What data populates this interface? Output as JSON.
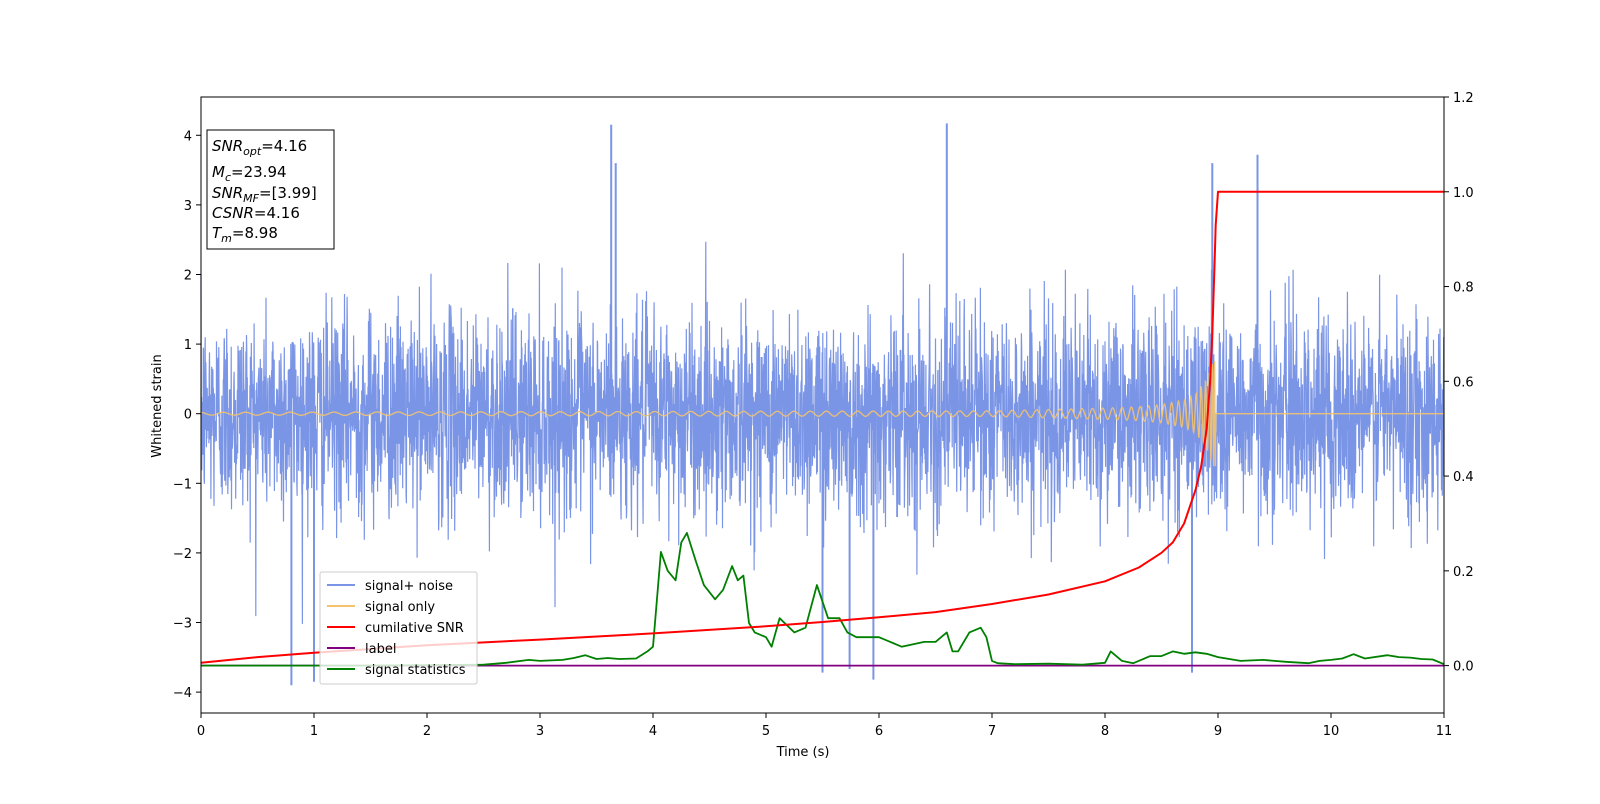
{
  "chart_data": {
    "type": "line",
    "xlabel": "Time (s)",
    "ylabel": "Whitened strain",
    "xlim": [
      0,
      11
    ],
    "ylim": [
      -4.3,
      4.55
    ],
    "y2lim": [
      -0.1,
      1.2
    ],
    "xticks": [
      "0",
      "1",
      "2",
      "3",
      "4",
      "5",
      "6",
      "7",
      "8",
      "9",
      "10",
      "11"
    ],
    "yticks": [
      "−4",
      "−3",
      "−2",
      "−1",
      "0",
      "1",
      "2",
      "3",
      "4"
    ],
    "y2ticks": [
      "0.0",
      "0.2",
      "0.4",
      "0.6",
      "0.8",
      "1.0",
      "1.2"
    ],
    "grid": false,
    "legend_position": "lower-left",
    "annotation": {
      "snr_opt": "4.16",
      "mc": "23.94",
      "snr_mf": "[3.99]",
      "csnr": "4.16",
      "tm": "8.98"
    },
    "series": [
      {
        "name": "signal+ noise",
        "axis": "left",
        "color": "#7b95e6",
        "style": "noise",
        "envelope": [
          -1.7,
          1.7
        ],
        "peaks": [
          [
            3.63,
            4.15
          ],
          [
            6.6,
            4.17
          ],
          [
            3.67,
            3.6
          ],
          [
            8.95,
            3.6
          ],
          [
            9.35,
            3.72
          ],
          [
            5.95,
            -3.82
          ],
          [
            0.8,
            -3.9
          ],
          [
            1.0,
            -3.85
          ],
          [
            5.5,
            -3.72
          ],
          [
            8.77,
            -3.72
          ],
          [
            5.74,
            -3.67
          ]
        ]
      },
      {
        "name": "signal only",
        "axis": "left",
        "color": "#f5c36b",
        "style": "chirp",
        "x": [
          0,
          7.0,
          7.5,
          8.0,
          8.3,
          8.5,
          8.7,
          8.8,
          8.9,
          8.95,
          8.98,
          9.0,
          11
        ],
        "amp": [
          0.02,
          0.04,
          0.06,
          0.08,
          0.1,
          0.13,
          0.2,
          0.28,
          0.5,
          0.72,
          0.85,
          0.0,
          0.0
        ]
      },
      {
        "name": "cumilative SNR",
        "axis": "right",
        "color": "#ff0000",
        "x": [
          0,
          0.5,
          1,
          2,
          3,
          4,
          5,
          5.5,
          6,
          6.5,
          7,
          7.5,
          8,
          8.3,
          8.5,
          8.6,
          8.7,
          8.8,
          8.85,
          8.9,
          8.93,
          8.95,
          8.97,
          8.98,
          9.0,
          11
        ],
        "y": [
          0.006,
          0.018,
          0.027,
          0.043,
          0.055,
          0.068,
          0.083,
          0.092,
          0.102,
          0.113,
          0.13,
          0.15,
          0.178,
          0.207,
          0.238,
          0.26,
          0.3,
          0.37,
          0.42,
          0.5,
          0.6,
          0.7,
          0.85,
          0.93,
          1.0,
          1.0
        ]
      },
      {
        "name": "label",
        "axis": "right",
        "color": "#800080",
        "x": [
          0,
          11
        ],
        "y": [
          0,
          0
        ]
      },
      {
        "name": "signal statistics",
        "axis": "right",
        "color": "#008000",
        "x": [
          0,
          0.5,
          1.0,
          1.5,
          2.0,
          2.5,
          2.7,
          2.9,
          3.0,
          3.2,
          3.3,
          3.4,
          3.5,
          3.6,
          3.7,
          3.85,
          3.95,
          4.0,
          4.07,
          4.13,
          4.2,
          4.25,
          4.3,
          4.38,
          4.45,
          4.55,
          4.62,
          4.7,
          4.75,
          4.8,
          4.85,
          4.9,
          5.0,
          5.05,
          5.12,
          5.25,
          5.35,
          5.45,
          5.55,
          5.65,
          5.72,
          5.8,
          6.0,
          6.2,
          6.4,
          6.5,
          6.6,
          6.65,
          6.7,
          6.8,
          6.9,
          6.95,
          7.0,
          7.05,
          7.2,
          7.5,
          7.8,
          8.0,
          8.05,
          8.15,
          8.25,
          8.4,
          8.5,
          8.6,
          8.7,
          8.8,
          8.9,
          9.0,
          9.2,
          9.4,
          9.6,
          9.8,
          9.9,
          10.0,
          10.1,
          10.2,
          10.3,
          10.5,
          10.6,
          10.7,
          10.8,
          10.9,
          11.0
        ],
        "y": [
          0.0,
          0.0,
          0.0,
          0.0,
          0.001,
          0.002,
          0.006,
          0.012,
          0.01,
          0.012,
          0.016,
          0.022,
          0.014,
          0.016,
          0.014,
          0.015,
          0.03,
          0.04,
          0.24,
          0.2,
          0.18,
          0.26,
          0.28,
          0.22,
          0.17,
          0.14,
          0.16,
          0.21,
          0.18,
          0.19,
          0.09,
          0.07,
          0.06,
          0.04,
          0.1,
          0.07,
          0.08,
          0.17,
          0.1,
          0.1,
          0.07,
          0.06,
          0.06,
          0.04,
          0.05,
          0.05,
          0.07,
          0.03,
          0.03,
          0.07,
          0.08,
          0.06,
          0.01,
          0.005,
          0.003,
          0.004,
          0.002,
          0.006,
          0.03,
          0.01,
          0.005,
          0.02,
          0.02,
          0.03,
          0.025,
          0.028,
          0.025,
          0.018,
          0.01,
          0.012,
          0.008,
          0.005,
          0.01,
          0.012,
          0.015,
          0.024,
          0.015,
          0.022,
          0.018,
          0.017,
          0.014,
          0.013,
          0.003
        ]
      }
    ]
  }
}
